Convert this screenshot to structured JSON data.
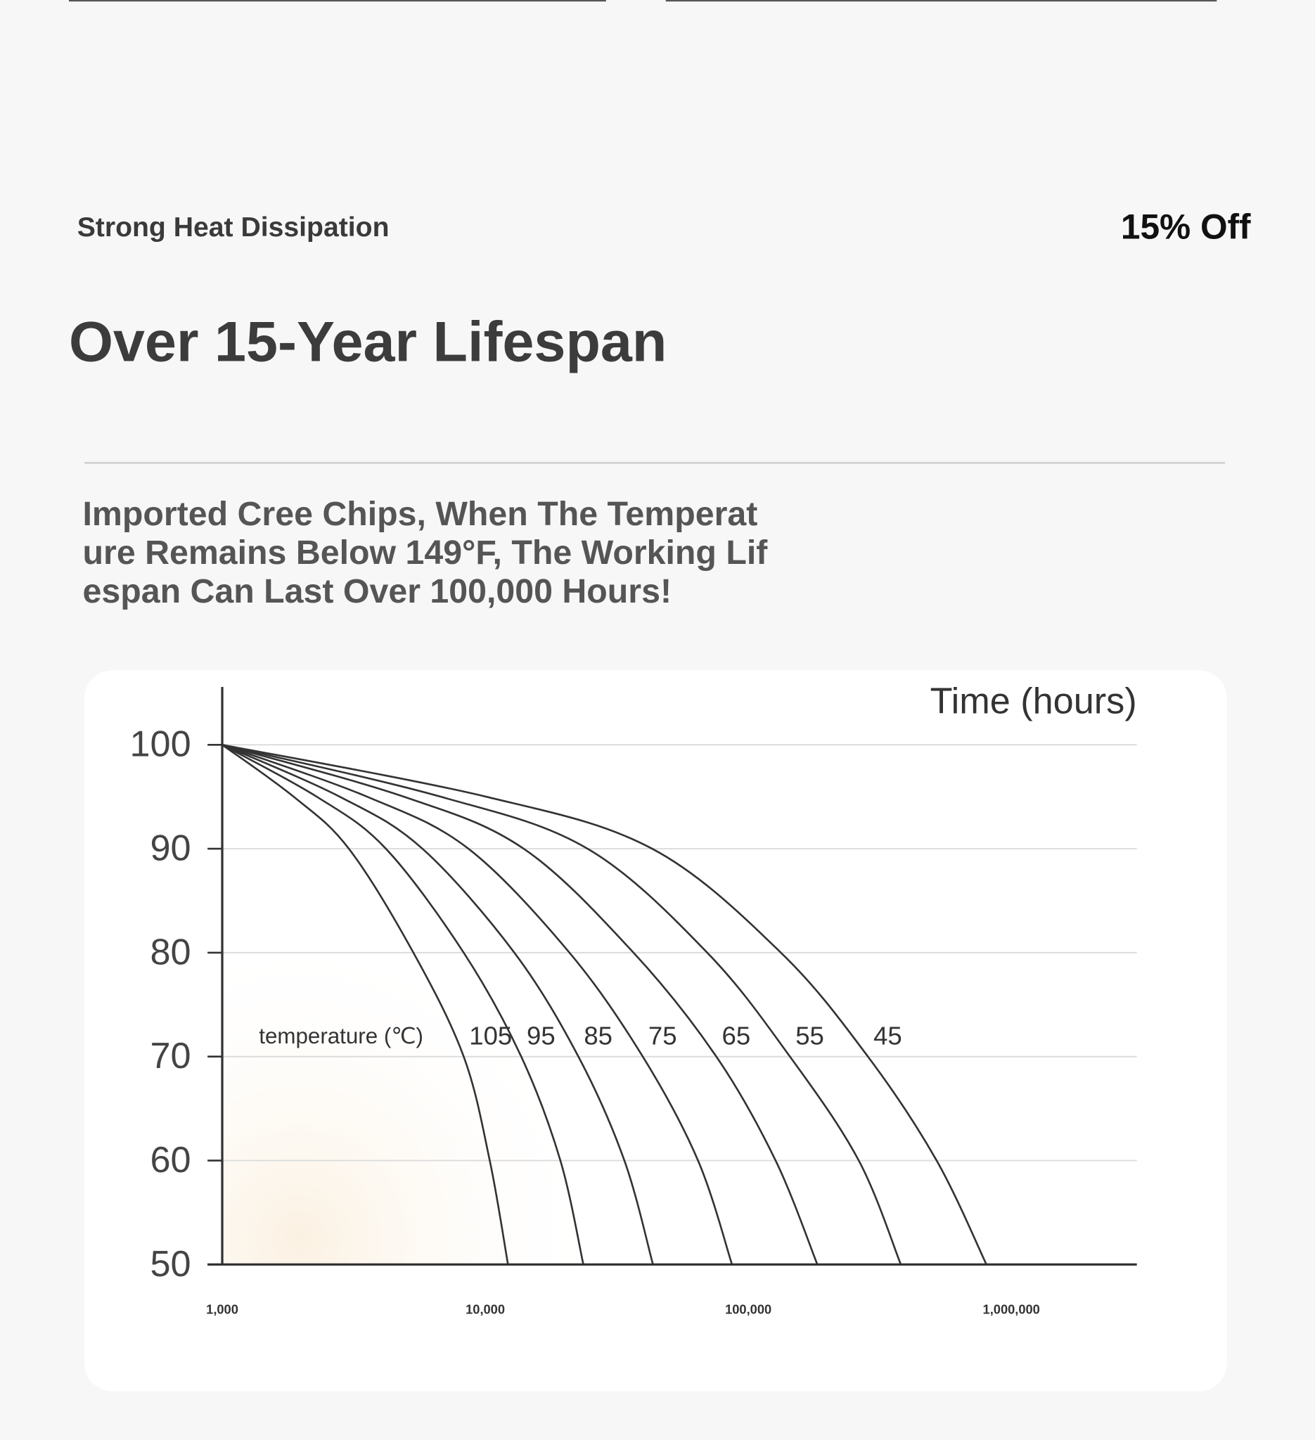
{
  "header": {
    "subtitle": "Strong Heat Dissipation",
    "discount": "15% Off",
    "title": "Over 15-Year Lifespan",
    "description_lines": [
      "Imported Cree Chips, When The Temperat",
      "ure Remains Below 149°F, The Working Lif",
      "espan Can Last Over 100,000 Hours!"
    ]
  },
  "chart_data": {
    "type": "line",
    "x_label": "Time (hours)",
    "annotation": "temperature (℃)",
    "xscale": "log",
    "xlim": [
      1000,
      3000000
    ],
    "xticks": [
      {
        "value": 1000,
        "label": "1,000"
      },
      {
        "value": 10000,
        "label": "10,000"
      },
      {
        "value": 100000,
        "label": "100,000"
      },
      {
        "value": 1000000,
        "label": "1,000,000"
      }
    ],
    "ylim": [
      50,
      100
    ],
    "yticks": [
      50,
      60,
      70,
      80,
      90,
      100
    ],
    "grid": true,
    "series": [
      {
        "name": "105",
        "color": "#333333",
        "x": [
          1000,
          1870,
          3030,
          5330,
          8280,
          10400,
          12200
        ],
        "values": [
          100,
          95,
          90,
          80,
          70,
          60,
          50
        ]
      },
      {
        "name": "95",
        "color": "#333333",
        "x": [
          1000,
          2290,
          4190,
          8280,
          13700,
          19300,
          23600
        ],
        "values": [
          100,
          95,
          90,
          80,
          70,
          60,
          50
        ]
      },
      {
        "name": "85",
        "color": "#333333",
        "x": [
          1000,
          2800,
          5770,
          12900,
          22600,
          33800,
          43400
        ],
        "values": [
          100,
          95,
          90,
          80,
          70,
          60,
          50
        ]
      },
      {
        "name": "75",
        "color": "#333333",
        "x": [
          1000,
          3560,
          8630,
          20900,
          39700,
          64400,
          86700
        ],
        "values": [
          100,
          95,
          90,
          80,
          70,
          60,
          50
        ]
      },
      {
        "name": "65",
        "color": "#333333",
        "x": [
          1000,
          4910,
          14000,
          36600,
          75600,
          127000,
          183000
        ],
        "values": [
          100,
          95,
          90,
          80,
          70,
          60,
          50
        ]
      },
      {
        "name": "55",
        "color": "#333333",
        "x": [
          1000,
          6780,
          24500,
          69800,
          144000,
          263000,
          380000
        ],
        "values": [
          100,
          95,
          90,
          80,
          70,
          60,
          50
        ]
      },
      {
        "name": "45",
        "color": "#333333",
        "x": [
          1000,
          10100,
          43100,
          133000,
          285000,
          520000,
          804000
        ],
        "values": [
          100,
          95,
          90,
          80,
          70,
          60,
          50
        ]
      }
    ]
  }
}
